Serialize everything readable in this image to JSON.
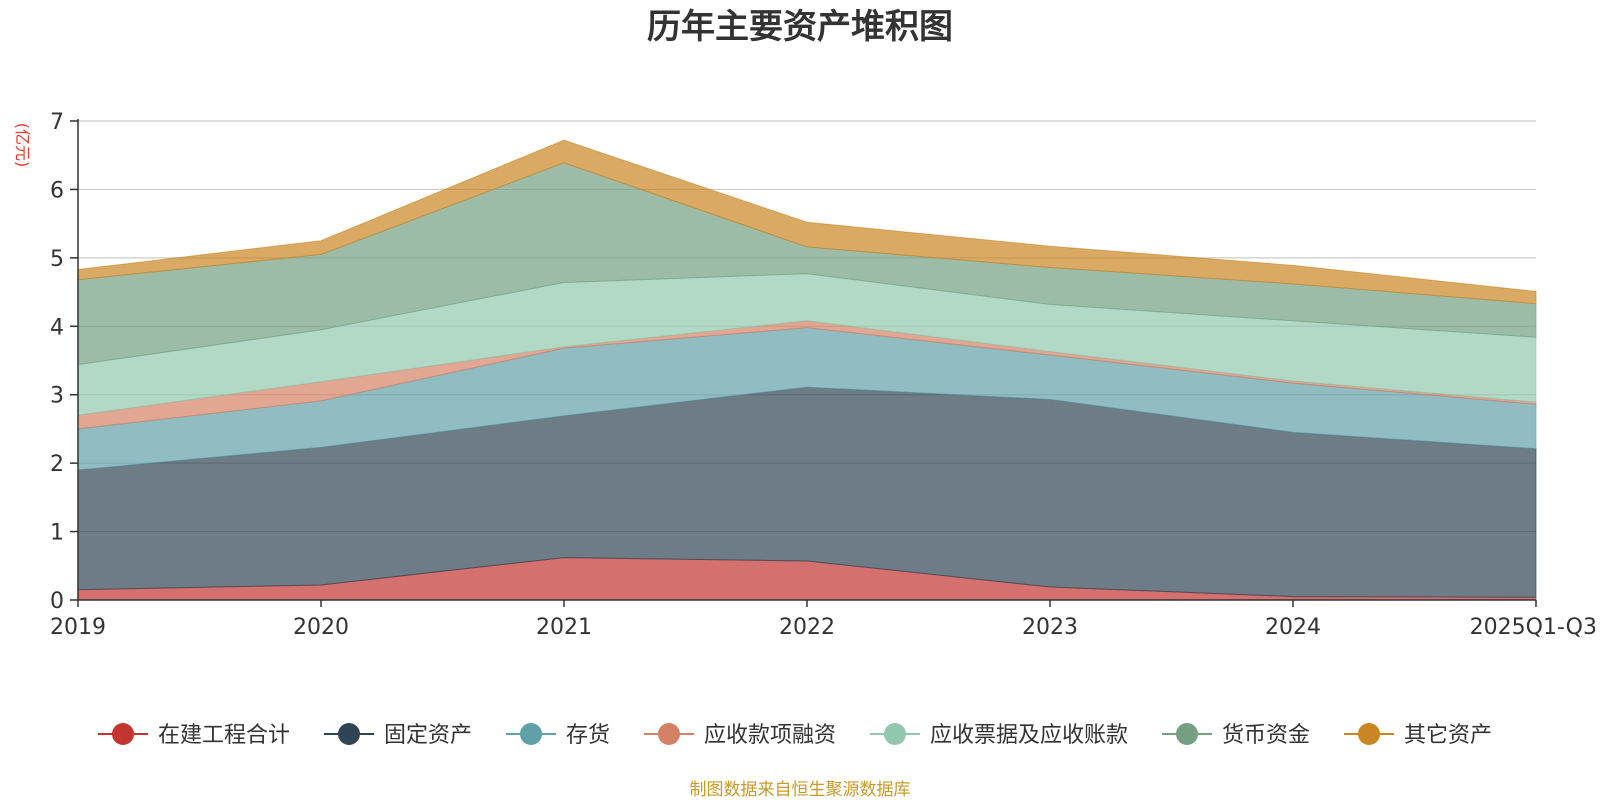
{
  "chart_data": {
    "type": "area",
    "stacked": true,
    "title": "历年主要资产堆积图",
    "ylabel": "(亿元)",
    "xlabel": "",
    "ylim": [
      0,
      7
    ],
    "yticks": [
      0,
      1,
      2,
      3,
      4,
      5,
      6,
      7
    ],
    "categories": [
      "2019",
      "2020",
      "2021",
      "2022",
      "2023",
      "2024",
      "2025Q1-Q3"
    ],
    "grid": true,
    "legend_position": "bottom",
    "series": [
      {
        "name": "在建工程合计",
        "color": "#c23531",
        "values": [
          0.15,
          0.22,
          0.62,
          0.57,
          0.19,
          0.05,
          0.04
        ]
      },
      {
        "name": "固定资产",
        "color": "#2f4554",
        "values": [
          1.75,
          2.01,
          2.07,
          2.54,
          2.74,
          2.4,
          2.17
        ]
      },
      {
        "name": "存货",
        "color": "#61a0a8",
        "values": [
          0.6,
          0.68,
          0.99,
          0.87,
          0.65,
          0.72,
          0.65
        ]
      },
      {
        "name": "应收款项融资",
        "color": "#d48265",
        "values": [
          0.2,
          0.28,
          0.02,
          0.1,
          0.05,
          0.03,
          0.03
        ]
      },
      {
        "name": "应收票据及应收账款",
        "color": "#91c7ae",
        "values": [
          0.74,
          0.76,
          0.94,
          0.69,
          0.69,
          0.88,
          0.95
        ]
      },
      {
        "name": "货币资金",
        "color": "#749f83",
        "values": [
          1.24,
          1.1,
          1.75,
          0.39,
          0.54,
          0.54,
          0.49
        ]
      },
      {
        "name": "其它资产",
        "color": "#ca8622",
        "values": [
          0.15,
          0.2,
          0.33,
          0.36,
          0.31,
          0.27,
          0.18
        ]
      }
    ]
  },
  "footer": {
    "source": "制图数据来自恒生聚源数据库",
    "source_color": "#c89a2a"
  },
  "colors": {
    "unit_label": "#e8382c",
    "axis": "#333333",
    "grid": "#cccccc"
  }
}
